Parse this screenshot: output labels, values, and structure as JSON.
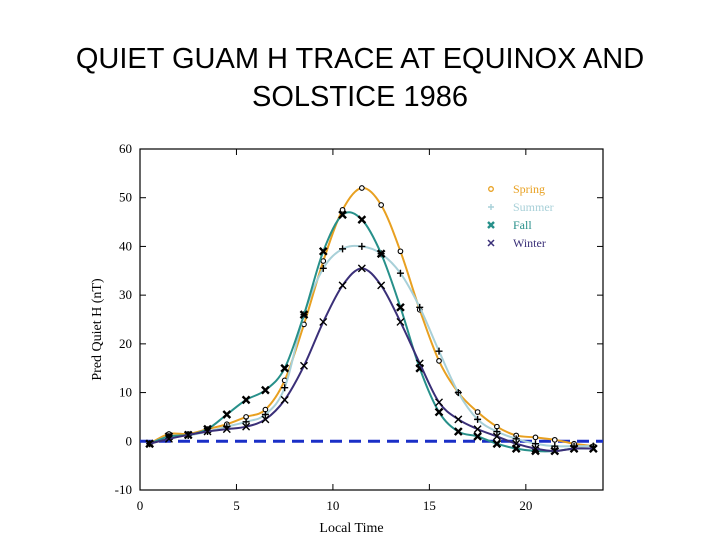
{
  "title_lines": [
    "QUIET GUAM H TRACE AT EQUINOX AND",
    "SOLSTICE 1986"
  ],
  "chart_data": {
    "type": "line",
    "title": "QUIET GUAM H TRACE AT EQUINOX AND SOLSTICE 1986",
    "xlabel": "Local Time",
    "ylabel": "Pred Quiet H (nT)",
    "xlim": [
      0,
      24
    ],
    "ylim": [
      -10,
      60
    ],
    "xticks": [
      0,
      5,
      10,
      15,
      20
    ],
    "yticks": [
      -10,
      0,
      10,
      20,
      30,
      40,
      50,
      60
    ],
    "grid": false,
    "legend_position": "top-right",
    "baseline": {
      "y": 0,
      "style": "dashed",
      "color": "#1a2fc7"
    },
    "x": [
      0.5,
      1.5,
      2.5,
      3.5,
      4.5,
      5.5,
      6.5,
      7.5,
      8.5,
      9.5,
      10.5,
      11.5,
      12.5,
      13.5,
      14.5,
      15.5,
      16.5,
      17.5,
      18.5,
      19.5,
      20.5,
      21.5,
      22.5,
      23.5
    ],
    "series": [
      {
        "name": "Spring",
        "color": "#e8a020",
        "marker": "circle",
        "values": [
          -0.5,
          1.5,
          1.5,
          2.5,
          3.5,
          5,
          6.5,
          12.5,
          24,
          37,
          47.5,
          52,
          48.5,
          39,
          27,
          16.5,
          10,
          6,
          3,
          1.2,
          0.8,
          0.3,
          -0.5,
          -1
        ]
      },
      {
        "name": "Summer",
        "color": "#a8d0d8",
        "marker": "plus",
        "values": [
          -0.5,
          1,
          1.2,
          2,
          3,
          4,
          5.5,
          11,
          26,
          35.5,
          39.5,
          40,
          38.5,
          34.5,
          27.5,
          18.5,
          10,
          4.5,
          2,
          0.5,
          -0.5,
          -1,
          -1,
          -1
        ]
      },
      {
        "name": "Fall",
        "color": "#27908a",
        "marker": "filled-x",
        "values": [
          -0.5,
          1,
          1.3,
          2.5,
          5.5,
          8.5,
          10.5,
          15,
          26,
          39,
          46.5,
          45.5,
          38.5,
          27.5,
          15,
          6,
          2,
          1,
          -0.5,
          -1.5,
          -2,
          -2,
          -1.5,
          -1.5
        ]
      },
      {
        "name": "Winter",
        "color": "#3a2f78",
        "marker": "x",
        "values": [
          -0.5,
          0.5,
          1.3,
          2,
          2.5,
          3,
          4.5,
          8.5,
          15.5,
          24.5,
          32,
          35.5,
          32,
          24.5,
          16,
          8,
          4.5,
          2.5,
          1,
          -0.5,
          -1.5,
          -2,
          -1.5,
          -1.5
        ]
      }
    ]
  }
}
